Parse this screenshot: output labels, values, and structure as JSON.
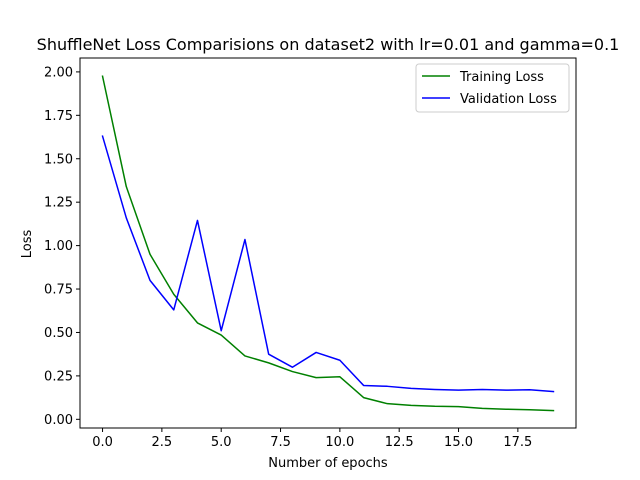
{
  "chart_data": {
    "type": "line",
    "title": "ShuffleNet Loss Comparisions on dataset2 with lr=0.01 and gamma=0.1",
    "xlabel": "Number of epochs",
    "ylabel": "Loss",
    "x": [
      0,
      1,
      2,
      3,
      4,
      5,
      6,
      7,
      8,
      9,
      10,
      11,
      12,
      13,
      14,
      15,
      16,
      17,
      18,
      19
    ],
    "xlim": [
      -0.95,
      19.95
    ],
    "ylim": [
      -0.05,
      2.08
    ],
    "xticks": [
      0.0,
      2.5,
      5.0,
      7.5,
      10.0,
      12.5,
      15.0,
      17.5
    ],
    "xtick_labels": [
      "0.0",
      "2.5",
      "5.0",
      "7.5",
      "10.0",
      "12.5",
      "15.0",
      "17.5"
    ],
    "yticks": [
      0.0,
      0.25,
      0.5,
      0.75,
      1.0,
      1.25,
      1.5,
      1.75,
      2.0
    ],
    "ytick_labels": [
      "0.00",
      "0.25",
      "0.50",
      "0.75",
      "1.00",
      "1.25",
      "1.50",
      "1.75",
      "2.00"
    ],
    "grid": false,
    "legend_position": "top-right",
    "series": [
      {
        "name": "Training Loss",
        "color": "#008000",
        "values": [
          1.975,
          1.34,
          0.95,
          0.72,
          0.555,
          0.485,
          0.365,
          0.325,
          0.275,
          0.24,
          0.245,
          0.125,
          0.09,
          0.08,
          0.075,
          0.073,
          0.063,
          0.058,
          0.055,
          0.05
        ]
      },
      {
        "name": "Validation Loss",
        "color": "#0000ff",
        "values": [
          1.63,
          1.16,
          0.8,
          0.63,
          1.145,
          0.51,
          1.035,
          0.375,
          0.3,
          0.385,
          0.34,
          0.195,
          0.19,
          0.178,
          0.172,
          0.168,
          0.172,
          0.168,
          0.17,
          0.16
        ]
      }
    ]
  }
}
